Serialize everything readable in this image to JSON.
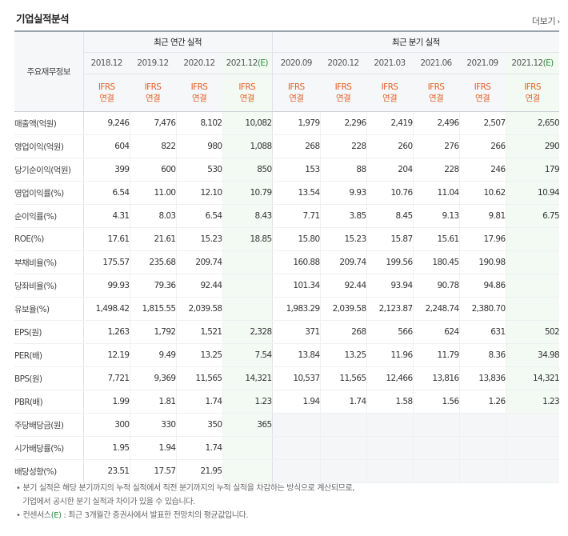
{
  "header": {
    "title": "기업실적분석",
    "more_label": "더보기"
  },
  "table": {
    "corner_label": "주요재무정보",
    "annual_group": "최근 연간 실적",
    "quarter_group": "최근 분기 실적",
    "annual_periods": [
      "2018.12",
      "2019.12",
      "2020.12",
      "2021.12(E)"
    ],
    "quarter_periods": [
      "2020.09",
      "2020.12",
      "2021.03",
      "2021.06",
      "2021.09",
      "2021.12(E)"
    ],
    "basis_line1": "IFRS",
    "basis_line2": "연결",
    "rows": [
      {
        "label": "매출액(억원)",
        "values": [
          "9,246",
          "7,476",
          "8,102",
          "10,082",
          "1,979",
          "2,296",
          "2,419",
          "2,496",
          "2,507",
          "2,650"
        ]
      },
      {
        "label": "영업이익(억원)",
        "values": [
          "604",
          "822",
          "980",
          "1,088",
          "268",
          "228",
          "260",
          "276",
          "266",
          "290"
        ]
      },
      {
        "label": "당기순이익(억원)",
        "values": [
          "399",
          "600",
          "530",
          "850",
          "153",
          "88",
          "204",
          "228",
          "246",
          "179"
        ]
      },
      {
        "label": "영업이익률(%)",
        "values": [
          "6.54",
          "11.00",
          "12.10",
          "10.79",
          "13.54",
          "9.93",
          "10.76",
          "11.04",
          "10.62",
          "10.94"
        ]
      },
      {
        "label": "순이익률(%)",
        "values": [
          "4.31",
          "8.03",
          "6.54",
          "8.43",
          "7.71",
          "3.85",
          "8.45",
          "9.13",
          "9.81",
          "6.75"
        ]
      },
      {
        "label": "ROE(%)",
        "values": [
          "17.61",
          "21.61",
          "15.23",
          "18.85",
          "15.80",
          "15.23",
          "15.87",
          "15.61",
          "17.96",
          ""
        ]
      },
      {
        "label": "부채비율(%)",
        "values": [
          "175.57",
          "235.68",
          "209.74",
          "",
          "160.88",
          "209.74",
          "199.56",
          "180.45",
          "190.98",
          ""
        ]
      },
      {
        "label": "당좌비율(%)",
        "values": [
          "99.93",
          "79.36",
          "92.44",
          "",
          "101.34",
          "92.44",
          "93.94",
          "90.78",
          "94.86",
          ""
        ]
      },
      {
        "label": "유보율(%)",
        "values": [
          "1,498.42",
          "1,815.55",
          "2,039.58",
          "",
          "1,983.29",
          "2,039.58",
          "2,123.87",
          "2,248.74",
          "2,380.70",
          ""
        ]
      },
      {
        "label": "EPS(원)",
        "values": [
          "1,263",
          "1,792",
          "1,521",
          "2,328",
          "371",
          "268",
          "566",
          "624",
          "631",
          "502"
        ]
      },
      {
        "label": "PER(배)",
        "values": [
          "12.19",
          "9.49",
          "13.25",
          "7.54",
          "13.84",
          "13.25",
          "11.96",
          "11.79",
          "8.36",
          "34.98"
        ]
      },
      {
        "label": "BPS(원)",
        "values": [
          "7,721",
          "9,369",
          "11,565",
          "14,321",
          "10,537",
          "11,565",
          "12,466",
          "13,816",
          "13,836",
          "14,321"
        ]
      },
      {
        "label": "PBR(배)",
        "values": [
          "1.99",
          "1.81",
          "1.74",
          "1.23",
          "1.94",
          "1.74",
          "1.58",
          "1.56",
          "1.26",
          "1.23"
        ]
      },
      {
        "label": "주당배당금(원)",
        "values": [
          "300",
          "330",
          "350",
          "365",
          "",
          "",
          "",
          "",
          "",
          ""
        ]
      },
      {
        "label": "시가배당률(%)",
        "values": [
          "1.95",
          "1.94",
          "1.74",
          "",
          "",
          "",
          "",
          "",
          "",
          ""
        ]
      },
      {
        "label": "배당성향(%)",
        "values": [
          "23.51",
          "17.57",
          "21.95",
          "",
          "",
          "",
          "",
          "",
          "",
          ""
        ]
      }
    ]
  },
  "notes": {
    "line1": "분기 실적은 해당 분기까지의 누적 실적에서 직전 분기까지의 누적 실적을 차감하는 방식으로 계산되므로,",
    "line2": "기업에서 공시한 분기 실적과 차이가 있을 수 있습니다.",
    "line3_pre": "컨센서스",
    "line3_e": "(E)",
    "line3_post": ": 최근 3개월간 증권사에서 발표한 전망치의 평균값입니다."
  }
}
